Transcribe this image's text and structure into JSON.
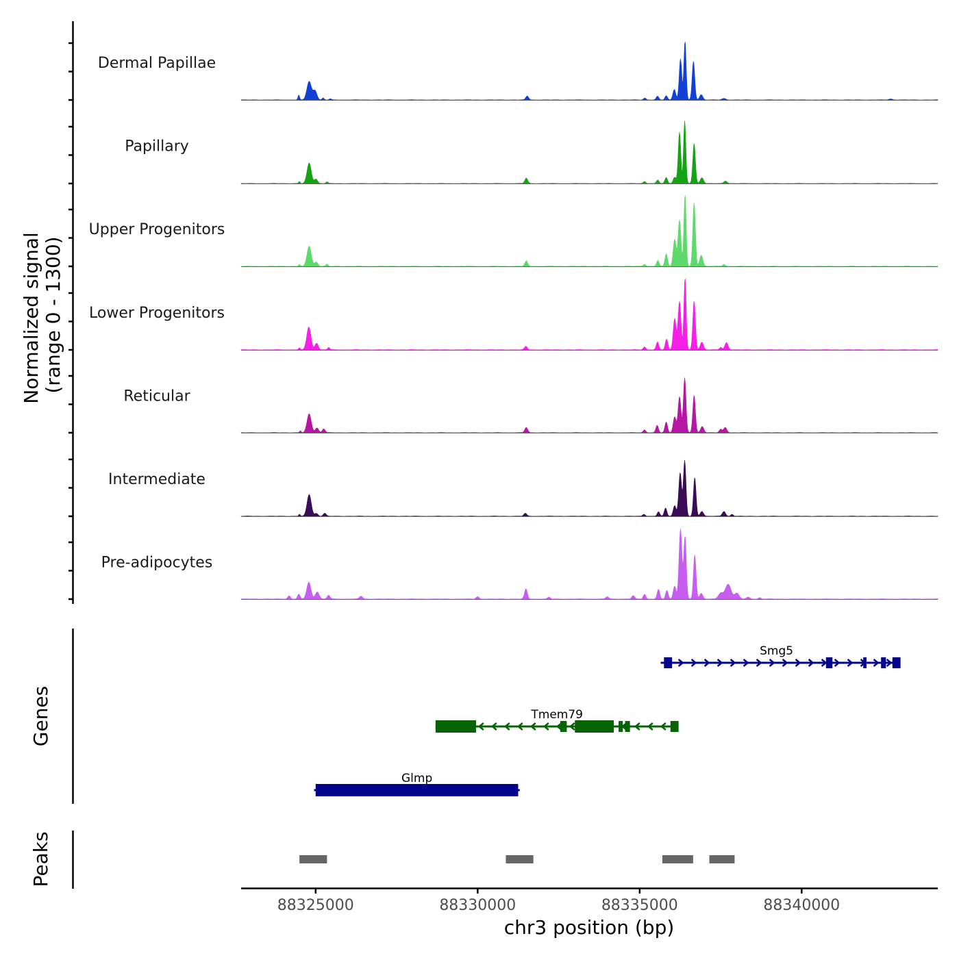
{
  "chart_data": {
    "type": "area",
    "title": "",
    "ylabel": "Normalized signal\n(range 0 - 1300)",
    "ylabel_lines": [
      "Normalized signal",
      "(range 0 - 1300)"
    ],
    "ylim": [
      0,
      1300
    ],
    "xlabel": "chr3 position (bp)",
    "xlim": [
      88322700,
      88344200
    ],
    "x_ticks": [
      88325000,
      88330000,
      88335000,
      88340000
    ],
    "x_tick_labels": [
      "88325000",
      "88330000",
      "88335000",
      "88340000"
    ],
    "series": [
      {
        "name": "Dermal Papillae",
        "color": "#1140d9",
        "peaks": [
          [
            88324480,
            25,
            100
          ],
          [
            88324800,
            70,
            380
          ],
          [
            88324980,
            60,
            190
          ],
          [
            88325230,
            30,
            40
          ],
          [
            88325450,
            35,
            22
          ],
          [
            88331530,
            45,
            80
          ],
          [
            88335160,
            40,
            40
          ],
          [
            88335550,
            40,
            75
          ],
          [
            88335820,
            40,
            85
          ],
          [
            88336070,
            45,
            220
          ],
          [
            88336260,
            40,
            850
          ],
          [
            88336400,
            35,
            1220
          ],
          [
            88336660,
            40,
            800
          ],
          [
            88336900,
            50,
            110
          ],
          [
            88337600,
            60,
            30
          ],
          [
            88342750,
            60,
            20
          ]
        ]
      },
      {
        "name": "Papillary",
        "color": "#14a314",
        "peaks": [
          [
            88324500,
            25,
            40
          ],
          [
            88324800,
            65,
            420
          ],
          [
            88325010,
            50,
            90
          ],
          [
            88325350,
            35,
            30
          ],
          [
            88331500,
            45,
            110
          ],
          [
            88335150,
            40,
            40
          ],
          [
            88335560,
            40,
            70
          ],
          [
            88335820,
            40,
            120
          ],
          [
            88336080,
            45,
            130
          ],
          [
            88336230,
            40,
            1060
          ],
          [
            88336390,
            35,
            1290
          ],
          [
            88336680,
            40,
            830
          ],
          [
            88336920,
            50,
            120
          ],
          [
            88337650,
            50,
            50
          ]
        ]
      },
      {
        "name": "Upper Progenitors",
        "color": "#5ed96b",
        "peaks": [
          [
            88324500,
            25,
            40
          ],
          [
            88324800,
            65,
            420
          ],
          [
            88325020,
            50,
            90
          ],
          [
            88325350,
            35,
            40
          ],
          [
            88331500,
            45,
            110
          ],
          [
            88335150,
            40,
            40
          ],
          [
            88335560,
            40,
            120
          ],
          [
            88335820,
            40,
            260
          ],
          [
            88336080,
            45,
            560
          ],
          [
            88336230,
            45,
            960
          ],
          [
            88336400,
            35,
            1490
          ],
          [
            88336680,
            40,
            1320
          ],
          [
            88336900,
            50,
            230
          ],
          [
            88337600,
            40,
            40
          ]
        ]
      },
      {
        "name": "Lower Progenitors",
        "color": "#f51fe8",
        "peaks": [
          [
            88324500,
            25,
            40
          ],
          [
            88324790,
            65,
            470
          ],
          [
            88325030,
            50,
            140
          ],
          [
            88325400,
            35,
            50
          ],
          [
            88331490,
            45,
            70
          ],
          [
            88335150,
            40,
            60
          ],
          [
            88335550,
            40,
            160
          ],
          [
            88335830,
            40,
            220
          ],
          [
            88336080,
            45,
            650
          ],
          [
            88336230,
            45,
            1000
          ],
          [
            88336400,
            35,
            1490
          ],
          [
            88336680,
            40,
            1010
          ],
          [
            88336920,
            50,
            160
          ],
          [
            88337500,
            40,
            50
          ],
          [
            88337680,
            50,
            150
          ]
        ]
      },
      {
        "name": "Reticular",
        "color": "#b516a4",
        "peaks": [
          [
            88324530,
            25,
            40
          ],
          [
            88324800,
            65,
            390
          ],
          [
            88325040,
            50,
            100
          ],
          [
            88325250,
            45,
            80
          ],
          [
            88331500,
            45,
            110
          ],
          [
            88335150,
            40,
            60
          ],
          [
            88335540,
            40,
            150
          ],
          [
            88335820,
            40,
            220
          ],
          [
            88336080,
            45,
            330
          ],
          [
            88336230,
            45,
            750
          ],
          [
            88336390,
            40,
            1140
          ],
          [
            88336680,
            40,
            780
          ],
          [
            88336930,
            50,
            130
          ],
          [
            88337500,
            40,
            70
          ],
          [
            88337640,
            50,
            110
          ]
        ]
      },
      {
        "name": "Intermediate",
        "color": "#3a0c57",
        "peaks": [
          [
            88324500,
            25,
            40
          ],
          [
            88324800,
            65,
            450
          ],
          [
            88325020,
            50,
            60
          ],
          [
            88325280,
            45,
            60
          ],
          [
            88331470,
            45,
            60
          ],
          [
            88335130,
            40,
            40
          ],
          [
            88335580,
            40,
            90
          ],
          [
            88335800,
            40,
            170
          ],
          [
            88336080,
            45,
            220
          ],
          [
            88336250,
            45,
            900
          ],
          [
            88336390,
            40,
            1150
          ],
          [
            88336700,
            40,
            800
          ],
          [
            88336920,
            50,
            100
          ],
          [
            88337600,
            50,
            100
          ],
          [
            88337850,
            40,
            40
          ]
        ]
      },
      {
        "name": "Pre-adipocytes",
        "color": "#c75ef0",
        "peaks": [
          [
            88324180,
            40,
            70
          ],
          [
            88324480,
            40,
            100
          ],
          [
            88324790,
            65,
            350
          ],
          [
            88325050,
            60,
            150
          ],
          [
            88325400,
            45,
            80
          ],
          [
            88326400,
            50,
            60
          ],
          [
            88330000,
            45,
            50
          ],
          [
            88331490,
            45,
            210
          ],
          [
            88332200,
            40,
            40
          ],
          [
            88334000,
            45,
            50
          ],
          [
            88334800,
            45,
            70
          ],
          [
            88335150,
            40,
            100
          ],
          [
            88335580,
            40,
            200
          ],
          [
            88335840,
            40,
            180
          ],
          [
            88336080,
            45,
            270
          ],
          [
            88336260,
            45,
            1460
          ],
          [
            88336400,
            40,
            1300
          ],
          [
            88336700,
            40,
            920
          ],
          [
            88336900,
            50,
            120
          ],
          [
            88337500,
            70,
            120
          ],
          [
            88337730,
            90,
            310
          ],
          [
            88338000,
            70,
            120
          ],
          [
            88338350,
            50,
            40
          ],
          [
            88338700,
            40,
            30
          ]
        ]
      }
    ],
    "genes": [
      {
        "name": "Smg5",
        "strand": "+",
        "color": "#04048a",
        "start": 88335650,
        "end": 88343050,
        "exons": [
          [
            88335750,
            88336000
          ],
          [
            88340750,
            88340950
          ],
          [
            88341900,
            88342000
          ],
          [
            88342450,
            88342600
          ],
          [
            88342800,
            88343050
          ]
        ],
        "utrs": []
      },
      {
        "name": "Tmem79",
        "strand": "-",
        "color": "#056305",
        "start": 88328700,
        "end": 88336200,
        "exons": [
          [
            88332550,
            88332750
          ],
          [
            88333300,
            88333600
          ],
          [
            88334350,
            88334480
          ],
          [
            88334550,
            88334700
          ],
          [
            88335950,
            88336200
          ]
        ],
        "utrs": [
          [
            88328700,
            88329950
          ],
          [
            88333000,
            88334200
          ]
        ]
      },
      {
        "name": "Glmp",
        "strand": "+",
        "color": "#04048a",
        "start": 88324950,
        "end": 88331300,
        "exons": [],
        "utrs": [
          [
            88325000,
            88331250
          ]
        ]
      }
    ],
    "peaks_track": {
      "label": "Peaks",
      "color": "#666666",
      "regions": [
        [
          88324500,
          88325350
        ],
        [
          88330870,
          88331720
        ],
        [
          88335700,
          88336650
        ],
        [
          88337150,
          88337930
        ]
      ]
    },
    "genes_track_label": "Genes"
  }
}
